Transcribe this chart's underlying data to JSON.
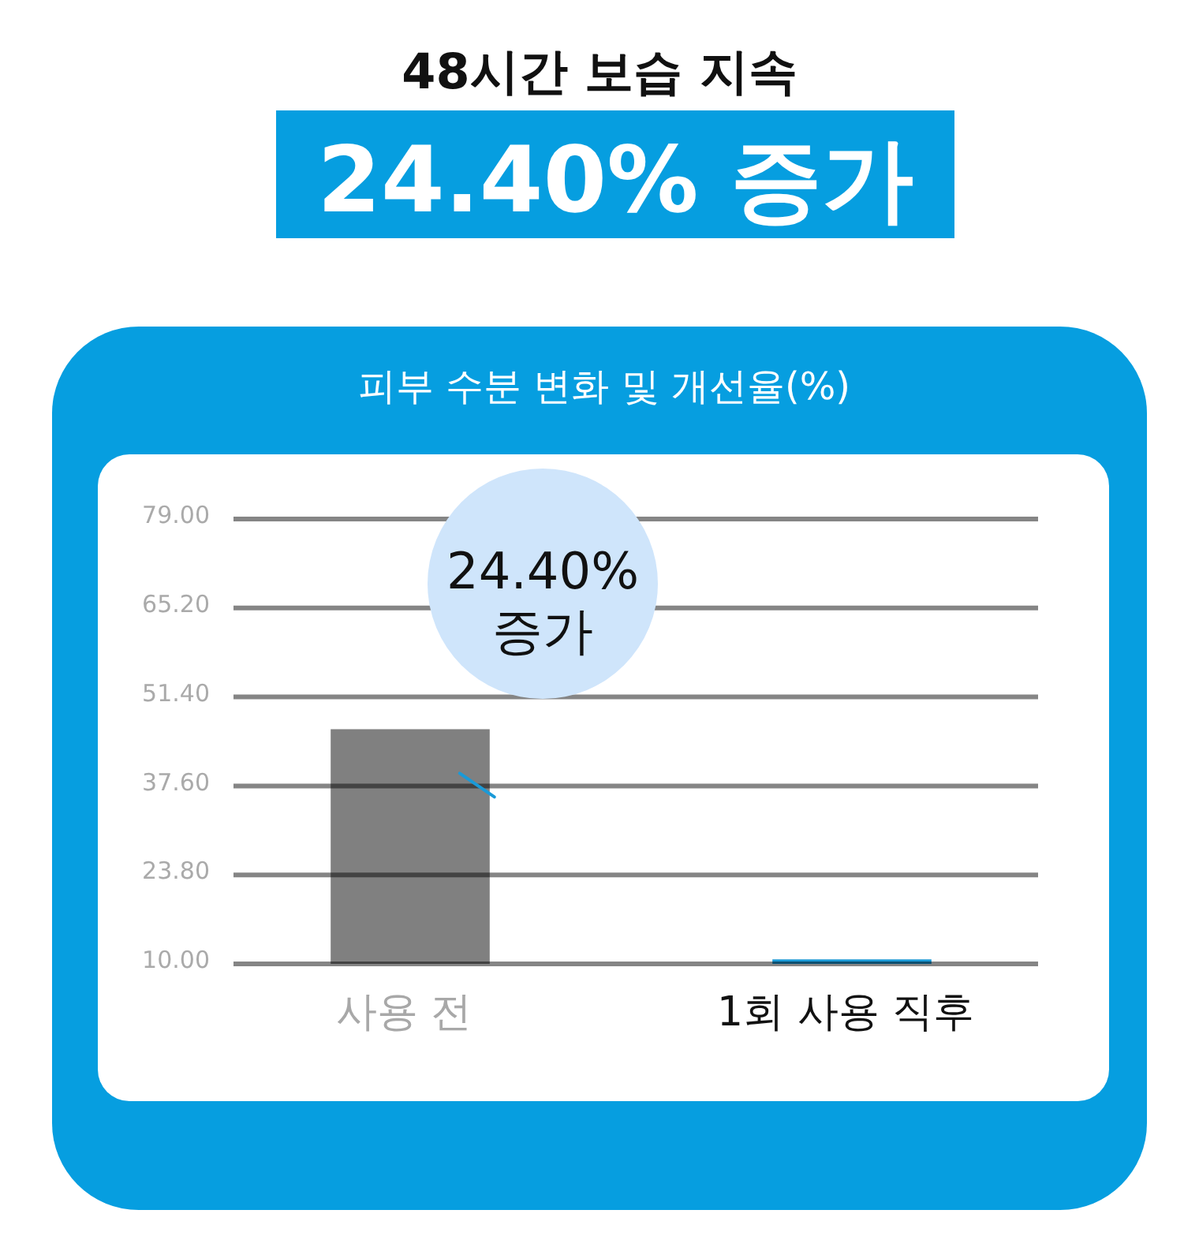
{
  "chart_data": {
    "type": "bar",
    "title": "48시간 보습 지속",
    "subtitle": "24.40% 증가",
    "categories": [
      "사용 전",
      "1회 사용 직후"
    ],
    "values": [
      46.4,
      10.7
    ],
    "colors": [
      "#808080",
      "#1a9ad8"
    ],
    "ylim": [
      10,
      79
    ],
    "yticks": [
      {
        "value": 10,
        "label": "10.00"
      },
      {
        "value": 23.8,
        "label": "23.80"
      },
      {
        "value": 37.6,
        "label": "37.60"
      },
      {
        "value": 51.4,
        "label": "51.40"
      },
      {
        "value": 65.2,
        "label": "65.20"
      },
      {
        "value": 79,
        "label": "79.00"
      }
    ],
    "grid": "y",
    "annotations": [
      "피부 수분 변화 및 개선율(%)",
      "24.40% 증가"
    ]
  }
}
